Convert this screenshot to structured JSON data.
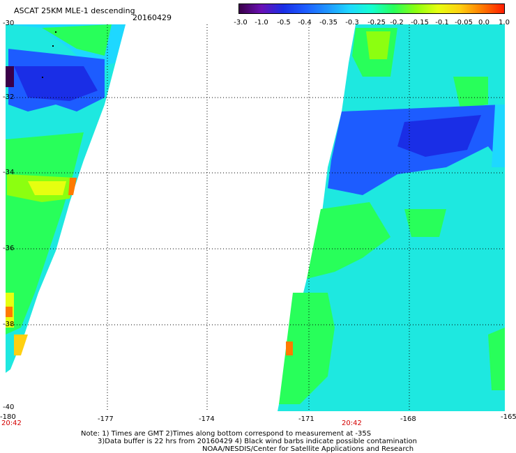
{
  "header": {
    "title": "ASCAT 25KM MLE-1 descending",
    "date": "20160429"
  },
  "colorbar": {
    "labels": [
      "-3.0",
      "-1.0",
      "-0.5",
      "-0.4",
      "-0.35",
      "-0.3",
      "-0.25",
      "-0.2",
      "-0.15",
      "-0.1",
      "-0.05",
      "0.0",
      "1.0"
    ],
    "colors": [
      "#3a0048",
      "#6a10b4",
      "#1a2ee6",
      "#1d5cff",
      "#1f95ff",
      "#1ed8ff",
      "#14ffd0",
      "#28ff5a",
      "#8cff10",
      "#e6ff10",
      "#ffd010",
      "#ff7a00",
      "#ff1c00"
    ]
  },
  "map": {
    "lat_labels": [
      "-30",
      "-32",
      "-34",
      "-36",
      "-38",
      "-40"
    ],
    "lon_labels": [
      "-180",
      "-177",
      "-174",
      "-171",
      "-168",
      "-165"
    ],
    "time_labels": [
      "20:42",
      "20:42"
    ]
  },
  "notes": {
    "line1": "Note: 1) Times are GMT 2)Times along bottom correspond to measurement at -35S",
    "line2": "3)Data buffer is 22 hrs from 20160429 4) Black wind barbs indicate possible contamination",
    "line3": "NOAA/NESDIS/Center for Satellite Applications and Research"
  }
}
